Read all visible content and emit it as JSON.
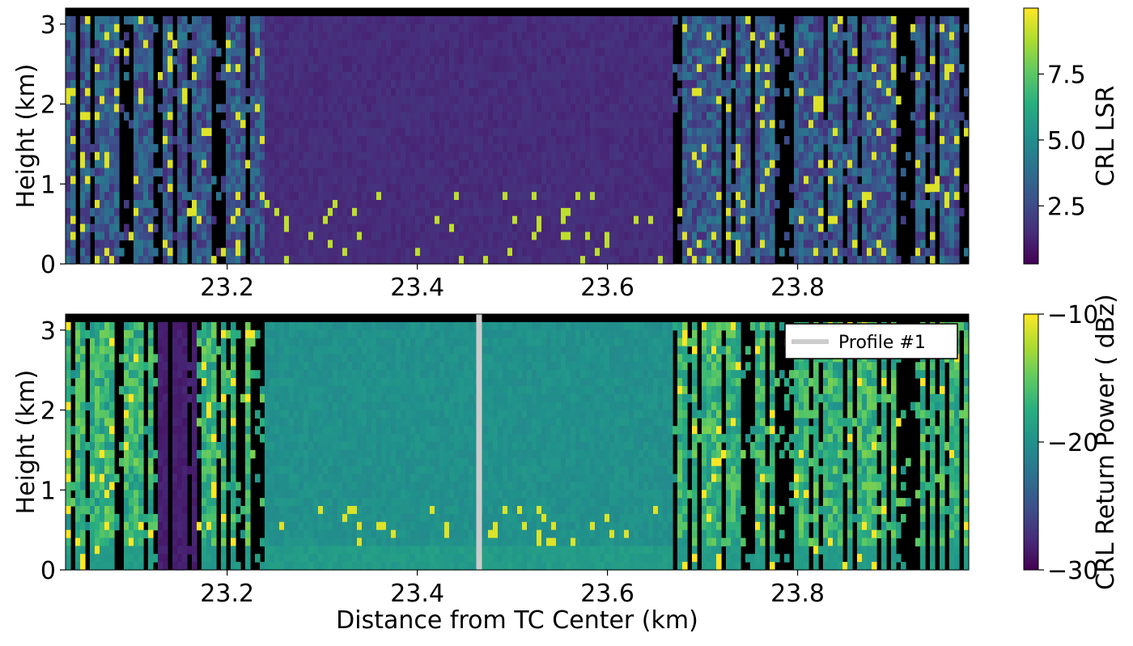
{
  "chart_data": [
    {
      "type": "heatmap",
      "title": "",
      "xlabel": "",
      "ylabel": "Height (km)",
      "xlim": [
        23.03,
        23.98
      ],
      "ylim": [
        0,
        3.2
      ],
      "xticks": [
        {
          "value": 23.2,
          "label": "23.2"
        },
        {
          "value": 23.4,
          "label": "23.4"
        },
        {
          "value": 23.6,
          "label": "23.6"
        },
        {
          "value": 23.8,
          "label": "23.8"
        }
      ],
      "yticks": [
        {
          "value": 0,
          "label": "0"
        },
        {
          "value": 1,
          "label": "1"
        },
        {
          "value": 2,
          "label": "2"
        },
        {
          "value": 3,
          "label": "3"
        }
      ],
      "colorbar": {
        "label": "CRL LSR",
        "range": [
          0.3,
          10.0
        ],
        "ticks": [
          {
            "value": 2.5,
            "label": "2.5"
          },
          {
            "value": 5.0,
            "label": "5.0"
          },
          {
            "value": 7.5,
            "label": "7.5"
          }
        ]
      },
      "colormap": "viridis",
      "missing_color": "#000000"
    },
    {
      "type": "heatmap",
      "title": "",
      "xlabel": "Distance from TC Center (km)",
      "ylabel": "Height (km)",
      "xlim": [
        23.03,
        23.98
      ],
      "ylim": [
        0,
        3.2
      ],
      "xticks": [
        {
          "value": 23.2,
          "label": "23.2"
        },
        {
          "value": 23.4,
          "label": "23.4"
        },
        {
          "value": 23.6,
          "label": "23.6"
        },
        {
          "value": 23.8,
          "label": "23.8"
        }
      ],
      "yticks": [
        {
          "value": 0,
          "label": "0"
        },
        {
          "value": 1,
          "label": "1"
        },
        {
          "value": 2,
          "label": "2"
        },
        {
          "value": 3,
          "label": "3"
        }
      ],
      "colorbar": {
        "label": "CRL Return Power ( dBz)",
        "range": [
          -30,
          -10
        ],
        "ticks": [
          {
            "value": -30,
            "label": "−30"
          },
          {
            "value": -20,
            "label": "−20"
          },
          {
            "value": -10,
            "label": "−10"
          }
        ]
      },
      "colormap": "viridis",
      "missing_color": "#000000",
      "profile_line": {
        "x": 23.465,
        "color": "#cccccc",
        "name": "Profile #1"
      },
      "legend": {
        "position": "top-right",
        "entries": [
          {
            "name": "Profile #1",
            "color": "#cccccc"
          }
        ]
      }
    }
  ]
}
